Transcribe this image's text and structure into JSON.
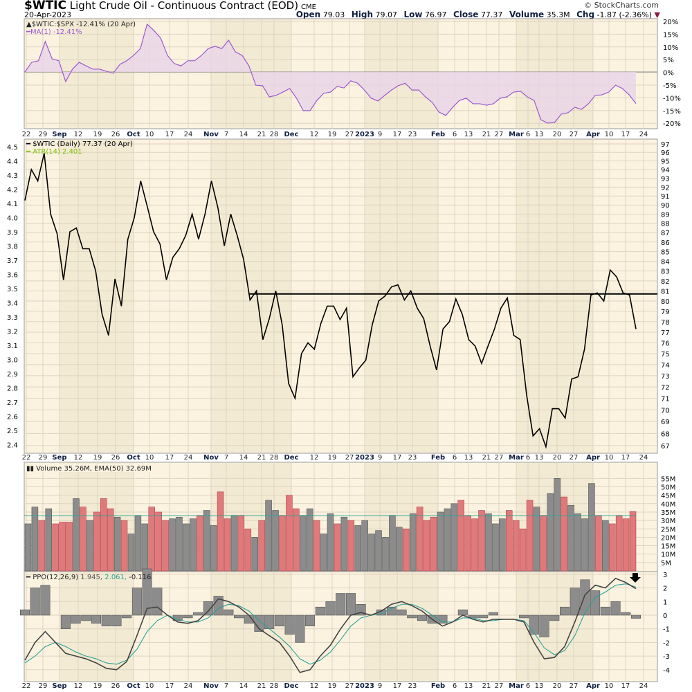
{
  "header": {
    "symbol": "$WTIC",
    "name": "Light Crude Oil - Continuous Contract (EOD)",
    "exchange": "CME",
    "date": "20-Apr-2023",
    "copyright": "© StockCharts.com",
    "open_label": "Open",
    "open": "79.03",
    "high_label": "High",
    "high": "79.07",
    "low_label": "Low",
    "low": "76.97",
    "close_label": "Close",
    "close": "77.37",
    "volume_label": "Volume",
    "volume": "35.3M",
    "chg_label": "Chg",
    "chg": "-1.87 (-2.36%)",
    "chg_icon": "triangle-down-icon"
  },
  "colors": {
    "price": "#000000",
    "ratio": "#9b59d0",
    "ratio_fill": "#e9d4e8",
    "up_bar": "#8c8c8c",
    "down_bar": "#e07a7a",
    "ema": "#2aa198",
    "ppo": "#444444",
    "signal": "#2aa198",
    "panel_bg": "#fbf3e0"
  },
  "chart_data": [
    {
      "type": "area",
      "panel": "ratio",
      "legend": [
        "$WTIC:$SPX -12.41% (20 Apr)",
        "MA(1) -12.41%"
      ],
      "yticks": [
        "20%",
        "15%",
        "10%",
        "5%",
        "0%",
        "-5%",
        "-10%",
        "-15%",
        "-20%"
      ],
      "ylim": [
        -20,
        20
      ],
      "values": [
        0,
        3.8,
        4.4,
        12.0,
        5.2,
        4.4,
        -3.8,
        1.1,
        3.8,
        2.4,
        1.1,
        1.1,
        0.3,
        -0.5,
        3.0,
        4.4,
        6.5,
        9.2,
        18.8,
        16.3,
        13.3,
        6.5,
        3.3,
        2.4,
        4.4,
        4.4,
        6.5,
        9.2,
        10.1,
        9.2,
        12.5,
        7.9,
        6.5,
        2.4,
        -5.2,
        -5.4,
        -9.8,
        -9.2,
        -7.9,
        -6.5,
        -10.3,
        -15.2,
        -15.2,
        -11.2,
        -8.4,
        -7.9,
        -5.7,
        -6.3,
        -3.5,
        -4.4,
        -7.1,
        -10.3,
        -11.4,
        -9.2,
        -7.1,
        -5.4,
        -4.4,
        -7.1,
        -7.1,
        -9.8,
        -12.0,
        -15.8,
        -17.1,
        -13.9,
        -11.2,
        -10.3,
        -12.5,
        -12.5,
        -13.1,
        -12.5,
        -10.3,
        -9.8,
        -7.9,
        -7.6,
        -9.8,
        -11.2,
        -18.8,
        -20.1,
        -19.9,
        -16.6,
        -16.0,
        -13.9,
        -14.7,
        -12.5,
        -9.2,
        -9.0,
        -7.9,
        -5.2,
        -6.5,
        -9.0,
        -12.4
      ]
    },
    {
      "type": "line",
      "panel": "price",
      "scale": "log",
      "legend": [
        "$WTIC (Daily) 77.37 (20 Apr)",
        "ATR(14) 2.401"
      ],
      "yticks_right": [
        "97",
        "96",
        "95",
        "94",
        "93",
        "92",
        "91",
        "90",
        "89",
        "88",
        "87",
        "86",
        "85",
        "84",
        "83",
        "82",
        "81",
        "80",
        "79",
        "78",
        "77",
        "76",
        "75",
        "74",
        "73",
        "72",
        "71",
        "70",
        "69",
        "68",
        "67"
      ],
      "yticks_left": [
        "4.5",
        "4.4",
        "4.3",
        "4.2",
        "4.1",
        "4.0",
        "3.9",
        "3.8",
        "3.7",
        "3.6",
        "3.5",
        "3.4",
        "3.3",
        "3.2",
        "3.1",
        "3.0",
        "2.9",
        "2.8",
        "2.7",
        "2.6",
        "2.5",
        "2.4"
      ],
      "ylim": [
        67,
        97
      ],
      "resistance": 80.7,
      "values": [
        90.5,
        94.0,
        92.7,
        95.9,
        89.0,
        86.9,
        82.1,
        87.1,
        87.5,
        85.3,
        85.3,
        83.0,
        78.7,
        76.7,
        82.2,
        79.5,
        86.3,
        88.6,
        92.7,
        89.9,
        87.1,
        85.8,
        82.1,
        84.4,
        85.3,
        86.7,
        89.0,
        86.3,
        89.0,
        92.7,
        89.7,
        85.6,
        89.0,
        86.7,
        84.2,
        80.1,
        81.0,
        76.3,
        78.3,
        81.0,
        77.7,
        72.3,
        71.0,
        75.0,
        76.0,
        75.4,
        77.8,
        79.5,
        79.5,
        78.2,
        79.3,
        72.9,
        73.7,
        74.4,
        77.7,
        80.0,
        80.5,
        81.4,
        81.6,
        80.1,
        81.0,
        79.3,
        78.3,
        75.7,
        73.5,
        77.3,
        78.0,
        80.2,
        78.7,
        76.3,
        75.7,
        74.1,
        75.7,
        77.3,
        79.3,
        80.3,
        76.7,
        76.3,
        71.3,
        67.8,
        68.4,
        66.9,
        70.1,
        70.1,
        69.3,
        72.7,
        72.9,
        75.4,
        80.6,
        80.8,
        80.0,
        83.1,
        82.4,
        80.8,
        80.6,
        77.3
      ]
    },
    {
      "type": "bar",
      "panel": "volume",
      "legend": "Volume 35.26M, EMA(50) 32.69M",
      "yticks": [
        "55M",
        "50M",
        "45M",
        "40M",
        "35M",
        "30M",
        "25M",
        "20M",
        "15M",
        "10M",
        "5M"
      ],
      "ylim": [
        0,
        58
      ],
      "ema": 32.7,
      "values": [
        28,
        38,
        30,
        37,
        28,
        29,
        29,
        43,
        38,
        30,
        35,
        43,
        37,
        32,
        30,
        22,
        33,
        28,
        38,
        35,
        30,
        31,
        32,
        28,
        31,
        33,
        36,
        27,
        47,
        31,
        33,
        33,
        25,
        20,
        30,
        42,
        36,
        33,
        45,
        37,
        33,
        37,
        30,
        22,
        34,
        28,
        32,
        30,
        27,
        30,
        22,
        24,
        20,
        33,
        26,
        25,
        34,
        38,
        30,
        32,
        35,
        37,
        40,
        42,
        33,
        31,
        36,
        34,
        28,
        31,
        36,
        30,
        25,
        42,
        38,
        33,
        46,
        55,
        44,
        39,
        34,
        31,
        52,
        33,
        30,
        28,
        33,
        31,
        35.26
      ]
    },
    {
      "type": "line",
      "panel": "ppo",
      "legend_name": "PPO(12,26,9)",
      "legend_ppo": "1.945,",
      "legend_signal": "2.061,",
      "legend_hist": "-0.116",
      "yticks": [
        "3",
        "2",
        "1",
        "0",
        "-1",
        "-2",
        "-3",
        "-4"
      ],
      "ylim": [
        -4.5,
        3.1
      ],
      "ppo": [
        -3.3,
        -2.0,
        -1.2,
        -2.0,
        -2.8,
        -3.0,
        -3.2,
        -3.5,
        -3.9,
        -4.0,
        -3.4,
        -1.5,
        0.5,
        0.6,
        0,
        -0.5,
        -0.6,
        -0.4,
        0.3,
        1.2,
        1.0,
        0.6,
        0,
        -1.0,
        -1.5,
        -2.0,
        -3.0,
        -4.2,
        -4.0,
        -3.0,
        -2.2,
        -1.0,
        0,
        0.2,
        0,
        0.3,
        0.8,
        1.0,
        0.7,
        0.3,
        -0.3,
        -0.8,
        -0.5,
        0,
        -0.3,
        -0.5,
        -0.3,
        -0.3,
        -0.3,
        -0.5,
        -2.0,
        -3.2,
        -3.1,
        -2.3,
        -0.5,
        1.5,
        2.2,
        2.0,
        2.7,
        2.4,
        1.945
      ],
      "signal": [
        -3.5,
        -3.0,
        -2.3,
        -2.0,
        -2.3,
        -2.7,
        -3.0,
        -3.2,
        -3.5,
        -3.6,
        -3.3,
        -2.5,
        -1.2,
        -0.4,
        0,
        -0.3,
        -0.5,
        -0.5,
        -0.2,
        0.5,
        0.8,
        0.7,
        0.3,
        -0.4,
        -1.0,
        -1.6,
        -2.3,
        -3.2,
        -3.6,
        -3.3,
        -2.7,
        -1.8,
        -0.8,
        -0.2,
        0,
        0.1,
        0.5,
        0.8,
        0.8,
        0.5,
        0,
        -0.5,
        -0.5,
        -0.2,
        -0.2,
        -0.4,
        -0.4,
        -0.3,
        -0.3,
        -0.4,
        -1.3,
        -2.4,
        -2.9,
        -2.6,
        -1.5,
        0.2,
        1.3,
        1.7,
        2.2,
        2.3,
        2.061
      ],
      "annotation_icon": "arrow-down-icon"
    }
  ],
  "dates": [
    {
      "t": "22"
    },
    {
      "t": "29"
    },
    {
      "t": "Sep",
      "b": 1
    },
    {
      "t": "12"
    },
    {
      "t": "19"
    },
    {
      "t": "26"
    },
    {
      "t": "Oct",
      "b": 1
    },
    {
      "t": "10"
    },
    {
      "t": "17"
    },
    {
      "t": "24"
    },
    {
      "t": "Nov",
      "b": 1
    },
    {
      "t": "7"
    },
    {
      "t": "14"
    },
    {
      "t": "21"
    },
    {
      "t": "28"
    },
    {
      "t": "Dec",
      "b": 1
    },
    {
      "t": "12"
    },
    {
      "t": "19"
    },
    {
      "t": "27"
    },
    {
      "t": "2023",
      "b": 1
    },
    {
      "t": "9"
    },
    {
      "t": "17"
    },
    {
      "t": "23"
    },
    {
      "t": "Feb",
      "b": 1
    },
    {
      "t": "6"
    },
    {
      "t": "13"
    },
    {
      "t": "21"
    },
    {
      "t": "27"
    },
    {
      "t": "Mar",
      "b": 1
    },
    {
      "t": "6"
    },
    {
      "t": "13"
    },
    {
      "t": "20"
    },
    {
      "t": "27"
    },
    {
      "t": "Apr",
      "b": 1
    },
    {
      "t": "10"
    },
    {
      "t": "17"
    },
    {
      "t": "24"
    }
  ]
}
